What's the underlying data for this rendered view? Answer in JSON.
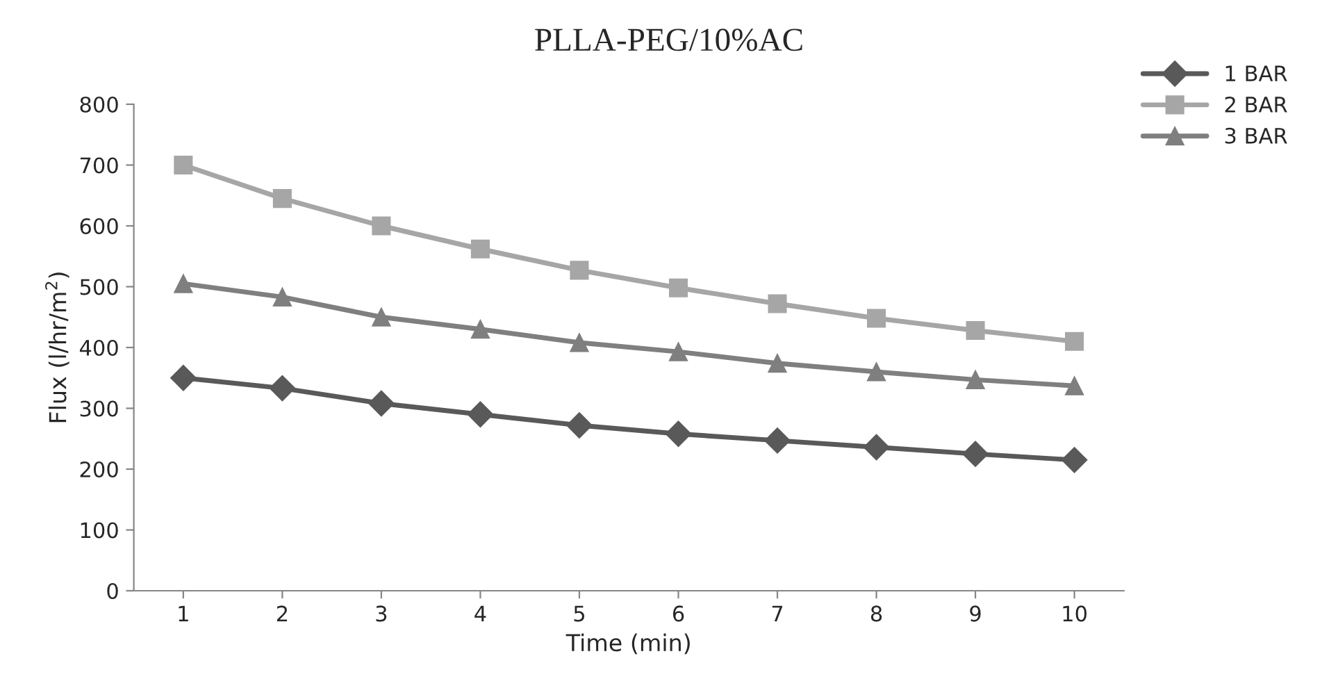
{
  "chart_data": {
    "type": "line",
    "title": "PLLA-PEG/10%AC",
    "xlabel": "Time (min)",
    "ylabel": "Flux (l/hr/m$^{2}$)",
    "categories": [
      "1",
      "2",
      "3",
      "4",
      "5",
      "6",
      "7",
      "8",
      "9",
      "10"
    ],
    "series": [
      {
        "name": "1 BAR",
        "color": "#595959",
        "marker": "diamond",
        "values": [
          350,
          333,
          308,
          290,
          272,
          258,
          247,
          236,
          225,
          215
        ]
      },
      {
        "name": "2 BAR",
        "color": "#a6a6a6",
        "marker": "square",
        "values": [
          700,
          645,
          600,
          562,
          527,
          498,
          472,
          448,
          428,
          410
        ]
      },
      {
        "name": "3 BAR",
        "color": "#7f7f7f",
        "marker": "triangle",
        "values": [
          505,
          483,
          450,
          430,
          408,
          393,
          374,
          360,
          347,
          337
        ]
      }
    ],
    "ylim": [
      0,
      800
    ],
    "yticks": [
      0,
      100,
      200,
      300,
      400,
      500,
      600,
      700,
      800
    ],
    "grid": false,
    "legend": "top right",
    "line_style": "solid"
  }
}
